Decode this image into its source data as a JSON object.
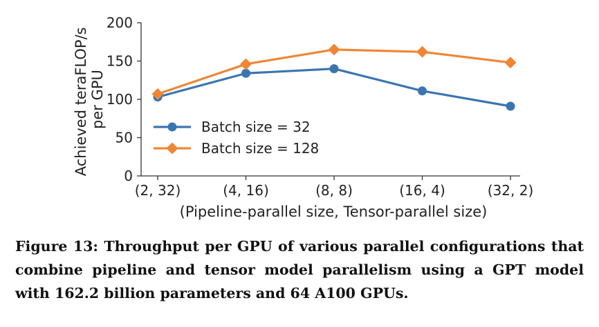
{
  "chart_data": {
    "type": "line",
    "categories": [
      "(2, 32)",
      "(4, 16)",
      "(8, 8)",
      "(16, 4)",
      "(32, 2)"
    ],
    "series": [
      {
        "name": "Batch size = 32",
        "values": [
          103,
          134,
          140,
          111,
          91
        ],
        "color": "#3b75af",
        "marker": "circle"
      },
      {
        "name": "Batch size = 128",
        "values": [
          107,
          146,
          165,
          162,
          148
        ],
        "color": "#ef8636",
        "marker": "diamond"
      }
    ],
    "xlabel": "(Pipeline-parallel size, Tensor-parallel size)",
    "ylabel_line1": "Achieved teraFLOP/s",
    "ylabel_line2": "per GPU",
    "ylim": [
      0,
      200
    ],
    "yticks": [
      "0",
      "50",
      "100",
      "150",
      "200"
    ],
    "grid": false,
    "legend_position": "lower-left"
  },
  "caption": "Figure 13: Throughput per GPU of various parallel configurations that combine pipeline and tensor model parallelism using a GPT model with 162.2 billion parameters and 64 A100 GPUs."
}
